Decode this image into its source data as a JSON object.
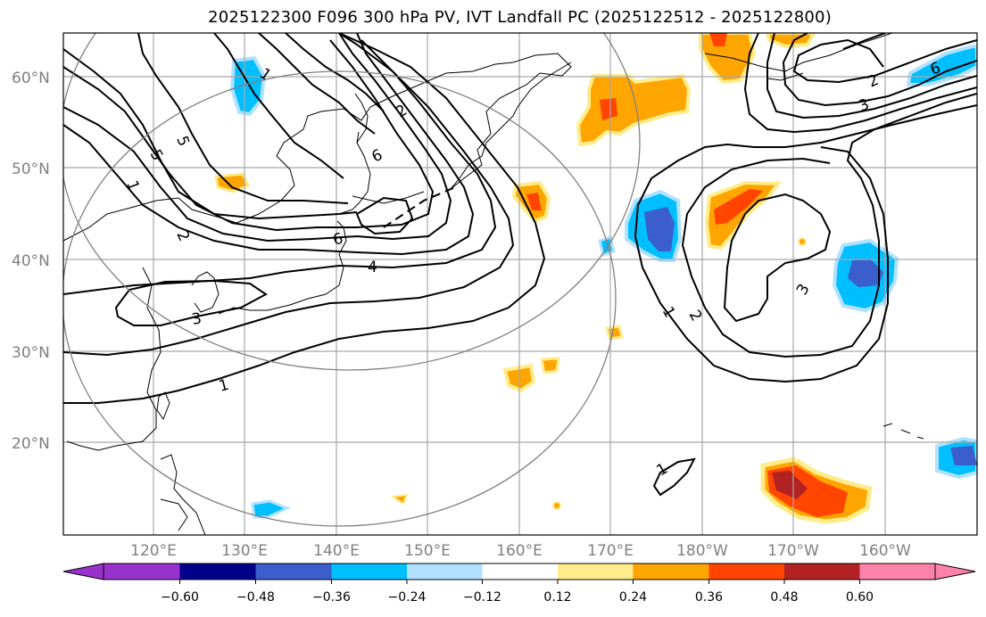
{
  "title": "2025122300 F096 300 hPa PV, IVT Landfall PC (2025122512 - 2025122800)",
  "lat_labels": [
    "60°N",
    "50°N",
    "40°N",
    "30°N",
    "20°N"
  ],
  "lon_labels": [
    "120°E",
    "130°E",
    "140°E",
    "150°E",
    "160°E",
    "170°E",
    "180°W",
    "170°W",
    "160°W"
  ],
  "contour_labels": [
    "1",
    "5",
    "5",
    "1",
    "2",
    "2",
    "6",
    "6",
    "3",
    "4",
    "1",
    "1",
    "2",
    "3",
    "1",
    "2",
    "3",
    "6"
  ],
  "colorbar": {
    "ticks": [
      "−0.60",
      "−0.48",
      "−0.36",
      "−0.24",
      "−0.12",
      "0.12",
      "0.24",
      "0.36",
      "0.48",
      "0.60"
    ],
    "colors": [
      "#9932cc",
      "#00008b",
      "#3a5fcd",
      "#00bfff",
      "#b0e2ff",
      "#ffffff",
      "#ffec8b",
      "#ffa500",
      "#ff4500",
      "#b22222",
      "#ff82ab"
    ]
  },
  "chart_data": {
    "type": "map",
    "fields": [
      "300 hPa PV contours",
      "IVT Landfall PC shading"
    ],
    "lat_range": [
      10,
      65
    ],
    "lon_range": [
      110,
      210
    ],
    "colorbar_range": [
      -0.6,
      0.6
    ]
  }
}
